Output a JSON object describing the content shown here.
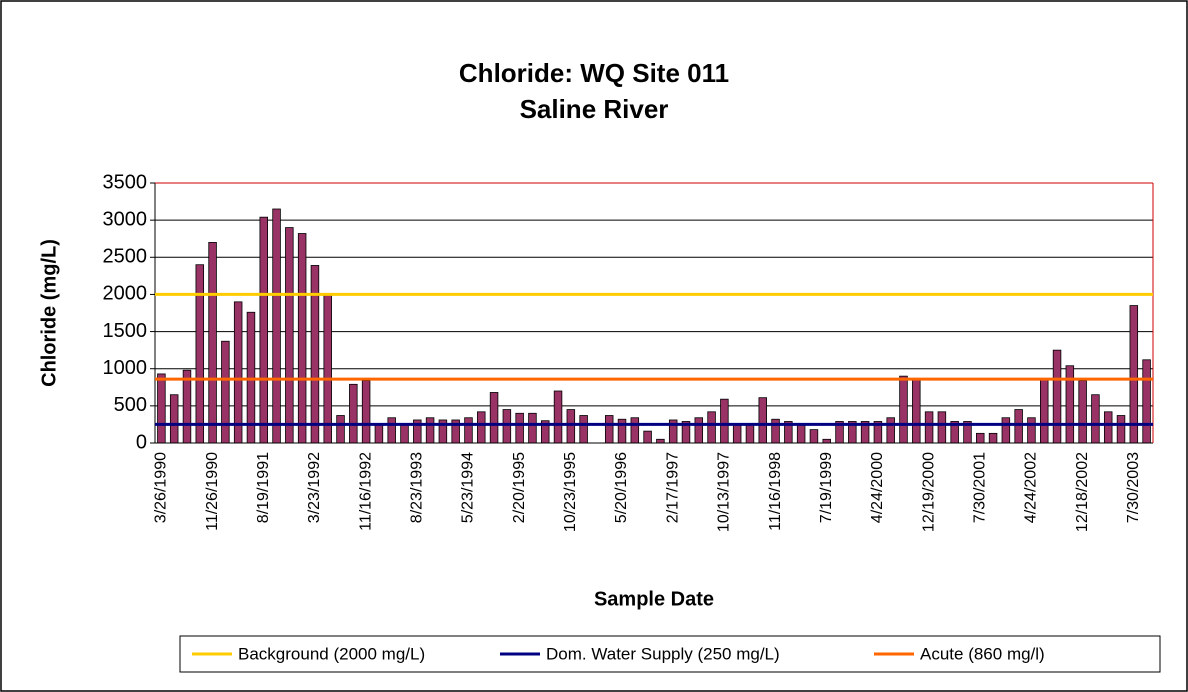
{
  "chart_data": {
    "type": "bar",
    "title": "Chloride: WQ Site 011",
    "subtitle": "Saline River",
    "y_label": "Chloride (mg/L)",
    "x_label": "Sample Date",
    "categories": [
      "3/26/1990",
      null,
      null,
      null,
      "11/26/1990",
      null,
      null,
      null,
      "8/19/1991",
      null,
      null,
      null,
      "3/23/1992",
      null,
      null,
      null,
      "11/16/1992",
      null,
      null,
      null,
      "8/23/1993",
      null,
      null,
      null,
      "5/23/1994",
      null,
      null,
      null,
      "2/20/1995",
      null,
      null,
      null,
      "10/23/1995",
      null,
      null,
      null,
      "5/20/1996",
      null,
      null,
      null,
      "2/17/1997",
      null,
      null,
      null,
      "10/13/1997",
      null,
      null,
      null,
      "11/16/1998",
      null,
      null,
      null,
      "7/19/1999",
      null,
      null,
      null,
      "4/24/2000",
      null,
      null,
      null,
      "12/19/2000",
      null,
      null,
      null,
      "7/30/2001",
      null,
      null,
      null,
      "4/24/2002",
      null,
      null,
      null,
      "12/18/2002",
      null,
      null,
      null,
      "7/30/2003",
      null
    ],
    "values": [
      930,
      650,
      980,
      2400,
      2700,
      1370,
      1900,
      1760,
      3040,
      3150,
      2900,
      2820,
      2390,
      2000,
      370,
      790,
      840,
      250,
      340,
      260,
      310,
      340,
      310,
      310,
      340,
      420,
      680,
      450,
      400,
      400,
      300,
      700,
      450,
      370,
      null,
      370,
      320,
      340,
      160,
      50,
      310,
      290,
      340,
      420,
      590,
      250,
      240,
      610,
      320,
      290,
      240,
      180,
      50,
      290,
      290,
      290,
      290,
      340,
      900,
      860,
      420,
      420,
      290,
      290,
      130,
      130,
      340,
      450,
      340,
      860,
      1250,
      1040,
      840,
      650,
      420,
      370,
      1850,
      1120
    ],
    "color": "#993366",
    "ylim": [
      0,
      3500
    ],
    "yticks": [
      0,
      500,
      1000,
      1500,
      2000,
      2500,
      3000,
      3500
    ],
    "grid": true,
    "reference_lines": [
      {
        "name": "Background (2000 mg/L)",
        "value": 2000,
        "color": "#ffcc00"
      },
      {
        "name": "Dom. Water Supply (250 mg/L)",
        "value": 250,
        "color": "#000080"
      },
      {
        "name": "Acute (860 mg/l)",
        "value": 860,
        "color": "#ff6600"
      }
    ],
    "legend": "bottom"
  }
}
